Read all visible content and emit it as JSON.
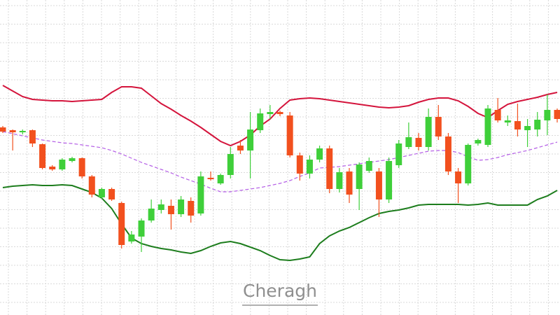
{
  "chart_data": {
    "type": "candlestick",
    "ylim": [
      0,
      450
    ],
    "grid": true,
    "up_color": "#3fcf3a",
    "down_color": "#f2501e",
    "open": [
      268,
      264,
      261,
      264,
      244,
      212,
      208,
      220,
      224,
      198,
      168,
      180,
      160,
      105,
      112,
      135,
      150,
      156,
      144,
      163,
      145,
      196,
      188,
      200,
      242,
      235,
      264,
      287,
      290,
      285,
      228,
      202,
      222,
      238,
      180,
      205,
      180,
      206,
      205,
      165,
      214,
      240,
      253,
      240,
      283,
      255,
      205,
      188,
      245,
      243,
      293,
      275,
      277,
      264,
      265,
      278,
      293
    ],
    "high": [
      270,
      265,
      265,
      265,
      245,
      214,
      224,
      226,
      225,
      200,
      182,
      182,
      162,
      120,
      138,
      165,
      165,
      165,
      170,
      168,
      205,
      205,
      202,
      240,
      250,
      290,
      295,
      300,
      292,
      290,
      232,
      228,
      242,
      242,
      210,
      210,
      218,
      225,
      210,
      225,
      250,
      275,
      260,
      295,
      300,
      260,
      210,
      245,
      252,
      300,
      310,
      285,
      302,
      280,
      290,
      315,
      295
    ],
    "low": [
      260,
      235,
      258,
      240,
      208,
      206,
      206,
      218,
      195,
      168,
      166,
      163,
      95,
      102,
      90,
      132,
      145,
      122,
      140,
      132,
      142,
      192,
      186,
      195,
      230,
      195,
      260,
      280,
      284,
      225,
      192,
      195,
      218,
      174,
      175,
      160,
      150,
      203,
      140,
      160,
      210,
      237,
      235,
      235,
      250,
      200,
      160,
      185,
      242,
      240,
      275,
      270,
      255,
      240,
      255,
      257,
      275
    ],
    "close": [
      262,
      261,
      263,
      245,
      210,
      208,
      222,
      224,
      198,
      172,
      180,
      165,
      100,
      115,
      135,
      152,
      158,
      144,
      165,
      142,
      198,
      194,
      200,
      230,
      235,
      265,
      288,
      290,
      287,
      228,
      202,
      222,
      238,
      180,
      204,
      172,
      215,
      220,
      165,
      220,
      245,
      254,
      240,
      283,
      255,
      205,
      188,
      243,
      250,
      295,
      278,
      278,
      265,
      270,
      279,
      293,
      280
    ],
    "bands": [
      {
        "color": "#d4143c",
        "style": "solid",
        "values": [
          328,
          320,
          312,
          308,
          307,
          306,
          306,
          305,
          306,
          307,
          308,
          318,
          326,
          326,
          324,
          313,
          302,
          294,
          285,
          277,
          268,
          258,
          248,
          242,
          248,
          257,
          270,
          280,
          295,
          307,
          309,
          310,
          309,
          307,
          305,
          303,
          301,
          299,
          297,
          296,
          297,
          299,
          304,
          308,
          310,
          310,
          306,
          298,
          288,
          282,
          292,
          301,
          305,
          308,
          311,
          315,
          318
        ]
      },
      {
        "color": "#b45ee6",
        "style": "dashed",
        "values": [
          262,
          259,
          256,
          253,
          250,
          248,
          246,
          245,
          243,
          241,
          239,
          235,
          230,
          224,
          218,
          213,
          208,
          203,
          197,
          192,
          187,
          181,
          176,
          176,
          178,
          180,
          182,
          185,
          188,
          192,
          198,
          203,
          210,
          211,
          212,
          214,
          216,
          218,
          220,
          222,
          225,
          228,
          231,
          234,
          235,
          235,
          232,
          226,
          221,
          222,
          225,
          229,
          232,
          235,
          239,
          243,
          247
        ]
      },
      {
        "color": "#1d7d1d",
        "style": "solid",
        "values": [
          182,
          184,
          185,
          186,
          185,
          185,
          186,
          185,
          180,
          175,
          167,
          152,
          130,
          110,
          102,
          98,
          95,
          93,
          90,
          88,
          92,
          98,
          103,
          105,
          102,
          97,
          92,
          85,
          79,
          78,
          80,
          83,
          102,
          113,
          120,
          125,
          132,
          139,
          145,
          148,
          150,
          153,
          157,
          158,
          158,
          158,
          158,
          157,
          158,
          160,
          157,
          157,
          157,
          157,
          165,
          170,
          178
        ]
      }
    ]
  },
  "watermark": "Cheragh"
}
